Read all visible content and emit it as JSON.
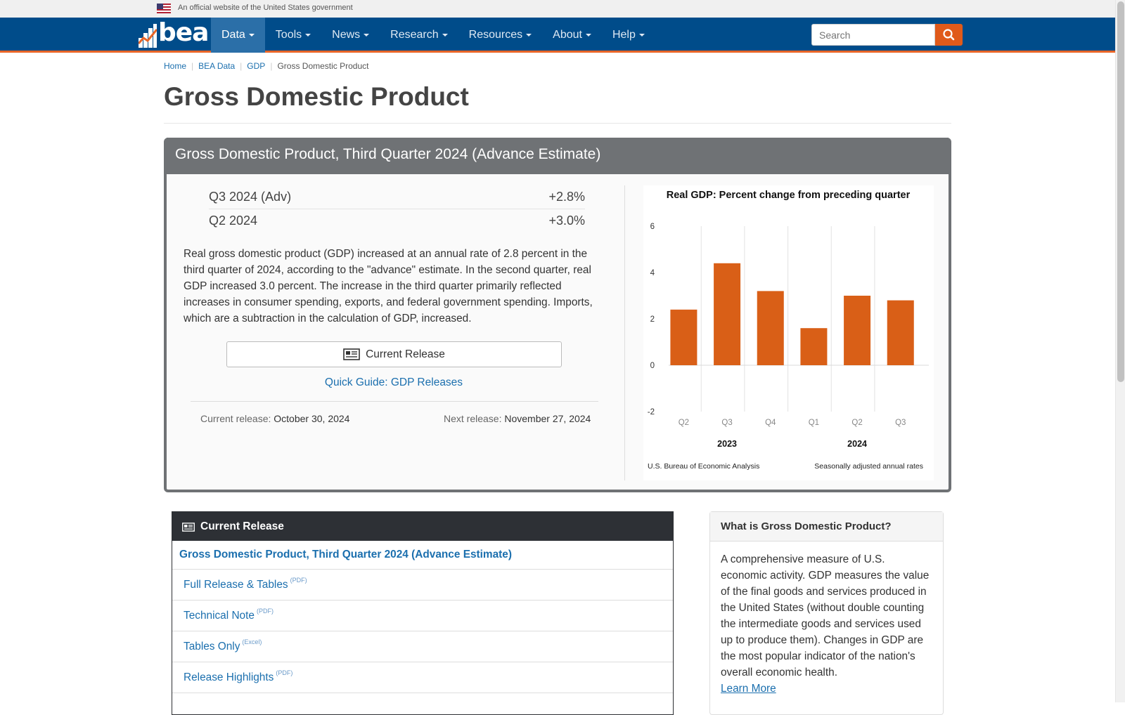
{
  "gov_banner": {
    "text": "An official website of the United States government"
  },
  "navbar": {
    "logo_text": "bea",
    "items": [
      {
        "label": "Data",
        "active": true
      },
      {
        "label": "Tools"
      },
      {
        "label": "News"
      },
      {
        "label": "Research"
      },
      {
        "label": "Resources"
      },
      {
        "label": "About"
      },
      {
        "label": "Help"
      }
    ],
    "search_placeholder": "Search"
  },
  "breadcrumb": [
    "Home",
    "BEA Data",
    "GDP",
    "Gross Domestic Product"
  ],
  "page_title": "Gross Domestic Product",
  "feature": {
    "heading": "Gross Domestic Product, Third Quarter 2024 (Advance Estimate)",
    "stats": [
      {
        "label": "Q3 2024 (Adv)",
        "value": "+2.8%"
      },
      {
        "label": "Q2 2024",
        "value": "+3.0%"
      }
    ],
    "summary": "Real gross domestic product (GDP) increased at an annual rate of 2.8 percent in the third quarter of 2024, according to the \"advance\" estimate. In the second quarter, real GDP increased 3.0 percent. The increase in the third quarter primarily reflected increases in consumer spending, exports, and federal government spending. Imports, which are a subtraction in the calculation of GDP, increased.",
    "release_button": "Current Release",
    "quick_guide": "Quick Guide: GDP Releases",
    "current_release_label": "Current release:",
    "current_release_date": "October 30, 2024",
    "next_release_label": "Next release:",
    "next_release_date": "November 27, 2024"
  },
  "chart_data": {
    "type": "bar",
    "title": "Real GDP:  Percent change from preceding quarter",
    "categories": [
      "Q2",
      "Q3",
      "Q4",
      "Q1",
      "Q2",
      "Q3"
    ],
    "groups": [
      {
        "label": "2023",
        "categories": [
          "Q2",
          "Q3",
          "Q4"
        ]
      },
      {
        "label": "2024",
        "categories": [
          "Q1",
          "Q2",
          "Q3"
        ]
      }
    ],
    "values": [
      2.4,
      4.4,
      3.2,
      1.6,
      3.0,
      2.8
    ],
    "ylim": [
      -2,
      6
    ],
    "yticks": [
      6,
      4,
      2,
      0,
      -2
    ],
    "bar_color": "#d95f17",
    "source_note": "U.S. Bureau of Economic Analysis",
    "adjust_note": "Seasonally adjusted annual rates",
    "xlabel": "",
    "ylabel": ""
  },
  "current_release": {
    "heading": "Current Release",
    "title": "Gross Domestic Product, Third Quarter 2024 (Advance Estimate)",
    "links": [
      {
        "label": "Full Release & Tables",
        "tag": "(PDF)"
      },
      {
        "label": "Technical Note",
        "tag": "(PDF)"
      },
      {
        "label": "Tables Only",
        "tag": "(Excel)"
      },
      {
        "label": "Release Highlights",
        "tag": "(PDF)"
      }
    ]
  },
  "what_is": {
    "heading": "What is Gross Domestic Product?",
    "body": "A comprehensive measure of U.S. economic activity. GDP measures the value of the final goods and services produced in the United States (without double counting the intermediate goods and services used up to produce them). Changes in GDP are the most popular indicator of the nation's overall economic health.",
    "learn_more": "Learn More"
  },
  "colors": {
    "nav_bg": "#004c8a",
    "accent": "#e86528",
    "link": "#1b6fae",
    "panel_gray": "#6f7275",
    "dark_head": "#2d3035"
  }
}
